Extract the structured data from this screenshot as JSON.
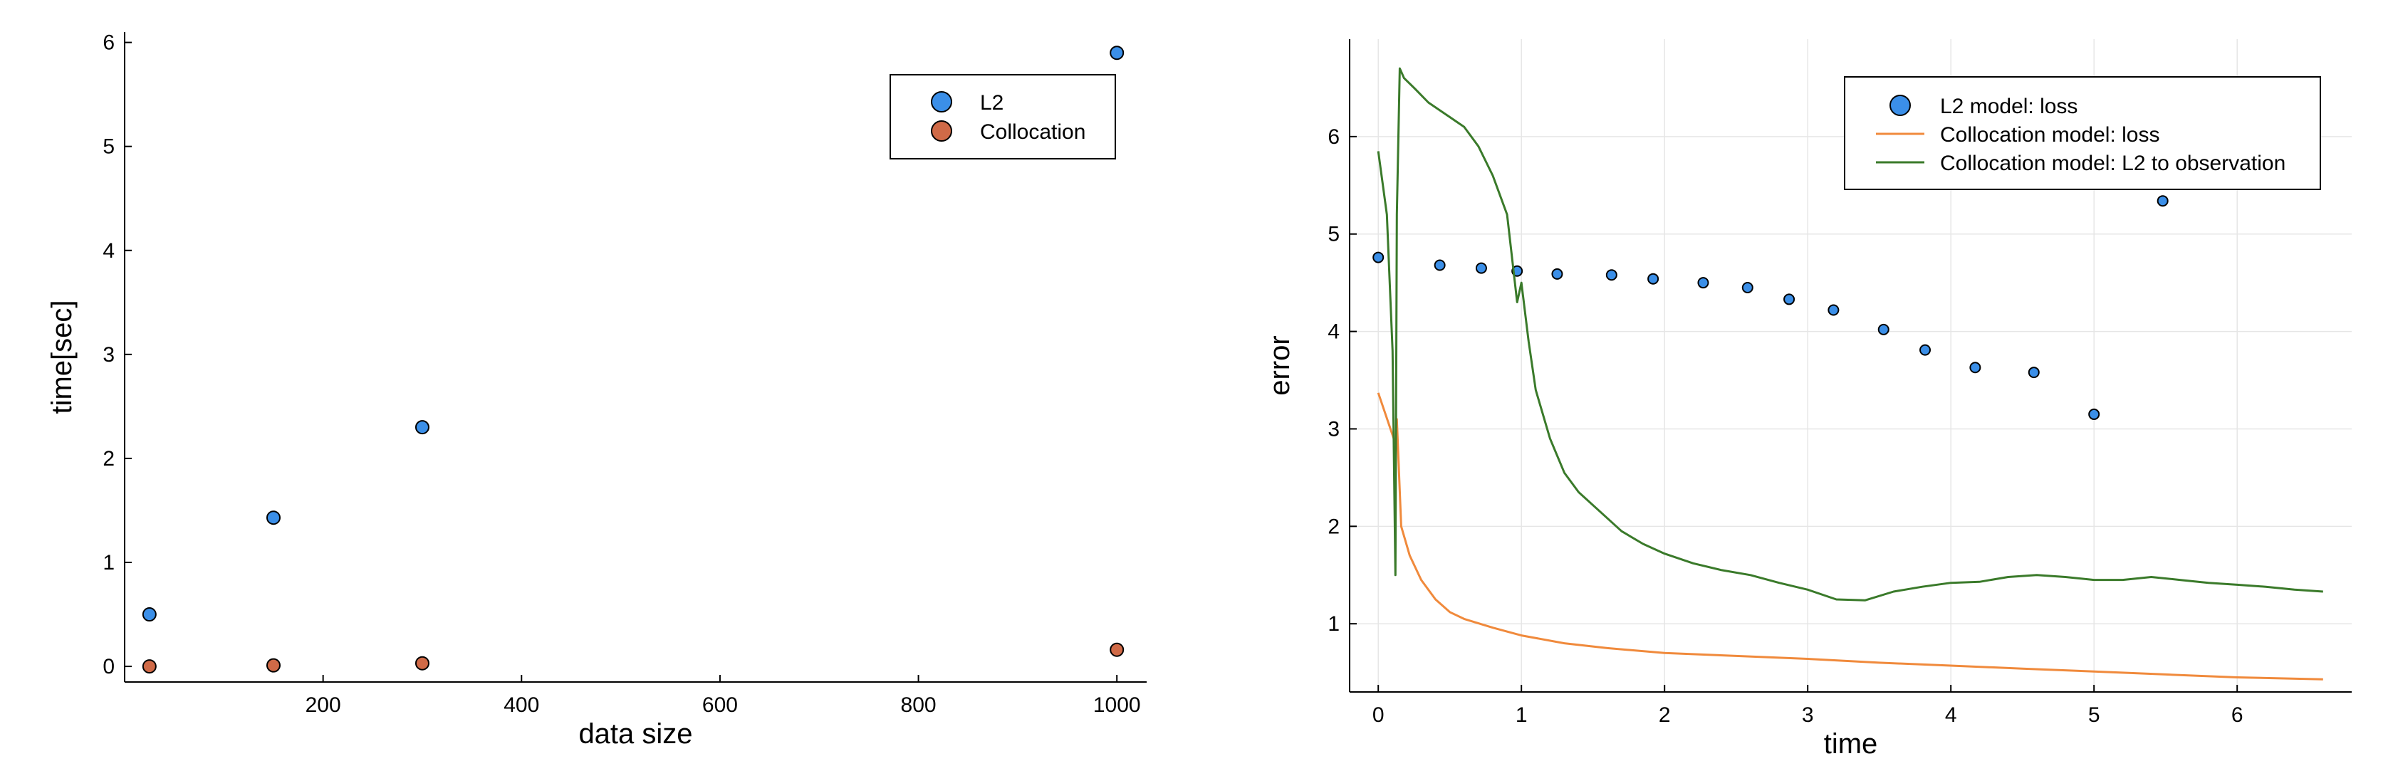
{
  "chart_data": [
    {
      "type": "scatter",
      "title": "",
      "xlabel": "data size",
      "ylabel": "time[sec]",
      "xlim": [
        0,
        1030
      ],
      "ylim": [
        -0.15,
        6.1
      ],
      "xticks": [
        200,
        400,
        600,
        800,
        1000
      ],
      "yticks": [
        0,
        1,
        2,
        3,
        4,
        5,
        6
      ],
      "grid": false,
      "legend_position": "top-right",
      "series": [
        {
          "name": "L2",
          "color": "#3b8fe8",
          "x": [
            25,
            150,
            300,
            1000
          ],
          "y": [
            0.5,
            1.43,
            2.3,
            5.9
          ]
        },
        {
          "name": "Collocation",
          "color": "#d06a47",
          "x": [
            25,
            150,
            300,
            1000
          ],
          "y": [
            0.0,
            0.01,
            0.03,
            0.16
          ]
        }
      ]
    },
    {
      "type": "line",
      "title": "",
      "xlabel": "time",
      "ylabel": "error",
      "xlim": [
        -0.2,
        6.8
      ],
      "ylim": [
        0.3,
        7.0
      ],
      "xticks": [
        0,
        1,
        2,
        3,
        4,
        5,
        6
      ],
      "yticks": [
        1,
        2,
        3,
        4,
        5,
        6
      ],
      "grid": true,
      "legend_position": "top-right",
      "series": [
        {
          "name": "L2 model: loss",
          "kind": "scatter",
          "color": "#3b8fe8",
          "x": [
            0.0,
            0.43,
            0.72,
            0.97,
            1.25,
            1.63,
            1.92,
            2.27,
            2.58,
            2.87,
            3.18,
            3.53,
            3.82,
            4.17,
            4.58,
            5.0,
            5.48
          ],
          "y": [
            4.76,
            4.68,
            4.65,
            4.62,
            4.59,
            4.58,
            4.54,
            4.5,
            4.45,
            4.33,
            4.22,
            4.02,
            3.81,
            3.63,
            3.58,
            3.15,
            5.34
          ]
        },
        {
          "name": "Collocation model: loss",
          "kind": "line",
          "color": "#f08a3c",
          "x": [
            0.0,
            0.12,
            0.13,
            0.16,
            0.22,
            0.3,
            0.4,
            0.5,
            0.6,
            0.8,
            1.0,
            1.3,
            1.6,
            2.0,
            2.5,
            3.0,
            3.5,
            4.0,
            4.5,
            5.0,
            5.5,
            6.0,
            6.6
          ],
          "y": [
            3.37,
            2.85,
            3.1,
            2.0,
            1.7,
            1.45,
            1.25,
            1.12,
            1.05,
            0.96,
            0.88,
            0.8,
            0.75,
            0.7,
            0.67,
            0.64,
            0.6,
            0.57,
            0.54,
            0.51,
            0.48,
            0.45,
            0.43
          ]
        },
        {
          "name": "Collocation model: L2 to observation",
          "kind": "line",
          "color": "#3a7a2a",
          "x": [
            0.0,
            0.06,
            0.1,
            0.12,
            0.13,
            0.15,
            0.18,
            0.25,
            0.35,
            0.5,
            0.6,
            0.7,
            0.8,
            0.9,
            0.97,
            1.0,
            1.05,
            1.1,
            1.2,
            1.3,
            1.4,
            1.55,
            1.7,
            1.85,
            2.0,
            2.2,
            2.4,
            2.6,
            2.8,
            3.0,
            3.2,
            3.4,
            3.6,
            3.8,
            4.0,
            4.2,
            4.4,
            4.6,
            4.8,
            5.0,
            5.2,
            5.4,
            5.6,
            5.8,
            6.0,
            6.2,
            6.4,
            6.6
          ],
          "y": [
            5.85,
            5.2,
            3.8,
            1.5,
            5.2,
            6.7,
            6.6,
            6.5,
            6.35,
            6.2,
            6.1,
            5.9,
            5.6,
            5.2,
            4.3,
            4.5,
            3.9,
            3.4,
            2.9,
            2.55,
            2.35,
            2.15,
            1.95,
            1.82,
            1.72,
            1.62,
            1.55,
            1.5,
            1.42,
            1.35,
            1.25,
            1.24,
            1.33,
            1.38,
            1.42,
            1.43,
            1.48,
            1.5,
            1.48,
            1.45,
            1.45,
            1.48,
            1.45,
            1.42,
            1.4,
            1.38,
            1.35,
            1.33
          ]
        }
      ]
    }
  ]
}
